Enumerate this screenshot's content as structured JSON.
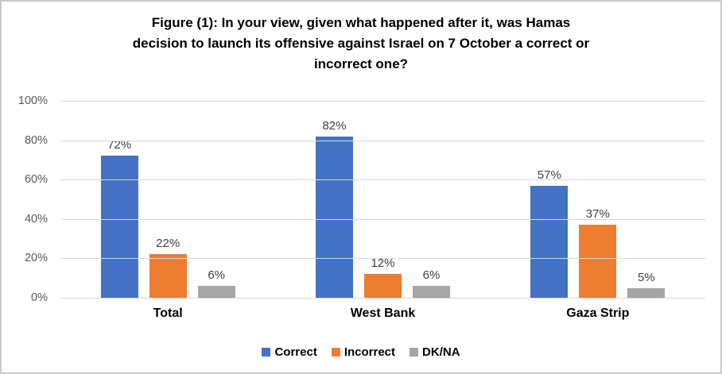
{
  "chart_data": {
    "type": "bar",
    "title": "Figure (1): In your view, given what happened after it, was Hamas\ndecision to launch its offensive against Israel on 7 October a correct or\nincorrect one?",
    "categories": [
      "Total",
      "West Bank",
      "Gaza Strip"
    ],
    "series": [
      {
        "name": "Correct",
        "color": "#4472C4",
        "values": [
          72,
          82,
          57
        ]
      },
      {
        "name": "Incorrect",
        "color": "#ED7D31",
        "values": [
          22,
          12,
          37
        ]
      },
      {
        "name": "DK/NA",
        "color": "#A5A5A5",
        "values": [
          6,
          6,
          5
        ]
      }
    ],
    "value_suffix": "%",
    "ylabel": "",
    "xlabel": "",
    "ylim": [
      0,
      100
    ],
    "ytick_step": 20,
    "ytick_suffix": "%",
    "grid": true,
    "legend_position": "bottom"
  },
  "colors": {
    "gridline": "#D9D9D9",
    "axis_text": "#595959",
    "data_label_text": "#404040",
    "title_text": "#000000",
    "border": "#C9C9C9",
    "background": "#FFFFFF"
  }
}
